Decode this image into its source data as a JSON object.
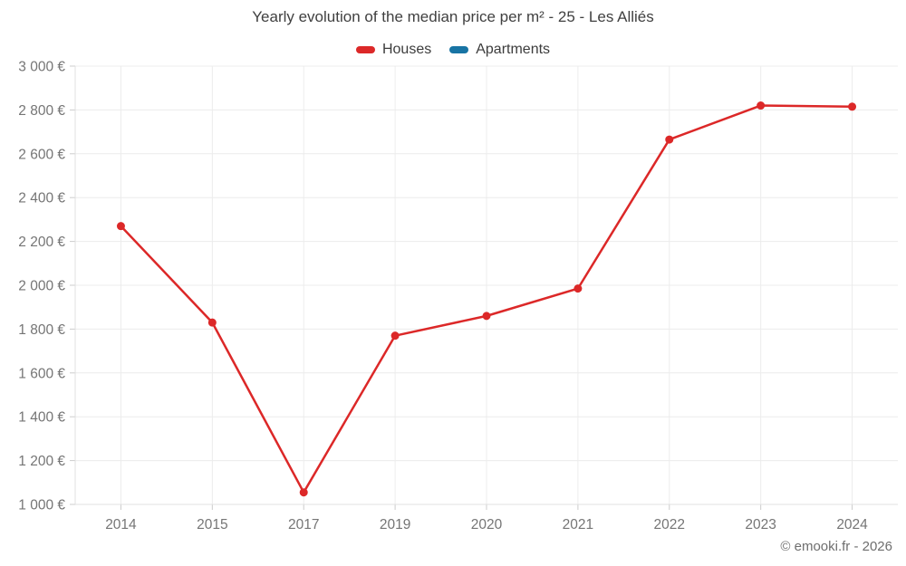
{
  "footer": {
    "copyright": "© emooki.fr - 2026"
  },
  "colors": {
    "houses": "#dc2828",
    "apartments": "#1874a4",
    "grid": "#ececec",
    "axis": "#e0e0e0",
    "tick": "#cccccc",
    "axis_label": "#757575",
    "title_text": "#404040"
  },
  "chart_data": {
    "type": "line",
    "title": "Yearly evolution of the median price per m² - 25 - Les Alliés",
    "categories": [
      "2014",
      "2015",
      "2017",
      "2019",
      "2020",
      "2021",
      "2022",
      "2023",
      "2024"
    ],
    "series": [
      {
        "name": "Houses",
        "color": "#dc2828",
        "values": [
          2270,
          1830,
          1055,
          1770,
          1860,
          1985,
          2665,
          2820,
          2815
        ]
      },
      {
        "name": "Apartments",
        "color": "#1874a4",
        "values": []
      }
    ],
    "xlabel": "",
    "ylabel": "",
    "ylim": [
      1000,
      3000
    ],
    "ytick_step": 200,
    "ytick_labels": [
      "1 000 €",
      "1 200 €",
      "1 400 €",
      "1 600 €",
      "1 800 €",
      "2 000 €",
      "2 200 €",
      "2 400 €",
      "2 600 €",
      "2 800 €",
      "3 000 €"
    ],
    "grid": true,
    "legend_position": "top",
    "marker": "circle"
  }
}
